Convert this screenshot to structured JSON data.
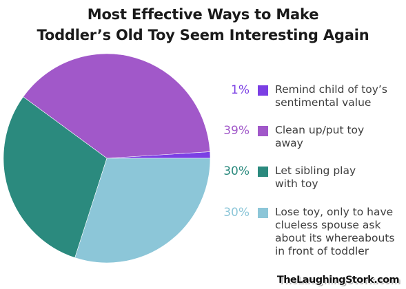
{
  "chart_data": {
    "type": "pie",
    "title_lines": [
      "Most Effective Ways to Make",
      "Toddler’s Old Toy Seem Interesting Again"
    ],
    "slices": [
      {
        "label_lines": [
          "Remind child of toy’s",
          "sentimental value"
        ],
        "value": 1,
        "value_label": "1%",
        "color": "#7b3fe4"
      },
      {
        "label_lines": [
          "Clean up/put toy",
          "away"
        ],
        "value": 39,
        "value_label": "39%",
        "color": "#a158c9"
      },
      {
        "label_lines": [
          "Let sibling play",
          "with toy"
        ],
        "value": 30,
        "value_label": "30%",
        "color": "#2b8a7e"
      },
      {
        "label_lines": [
          "Lose toy, only to have",
          "clueless spouse ask",
          "about its whereabouts",
          "in front of toddler"
        ],
        "value": 30,
        "value_label": "30%",
        "color": "#8cc6d8"
      }
    ],
    "start_angle_deg": 0,
    "direction": "counterclockwise",
    "legend_position": "right"
  },
  "watermark": "TheLaughingStork.com"
}
